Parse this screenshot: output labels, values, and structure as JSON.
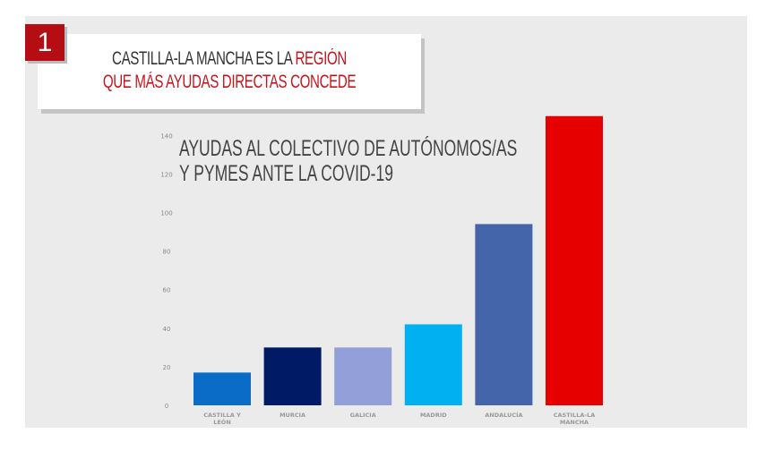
{
  "header": {
    "number": "1",
    "line1_a": "CASTILLA-LA MANCHA ES LA ",
    "line1_b": "REGIÓN",
    "line2": "QUE MÁS AYUDAS DIRECTAS CONCEDE"
  },
  "chart_data": {
    "type": "bar",
    "title_line1": "AYUDAS AL COLECTIVO DE AUTÓNOMOS/AS",
    "title_line2": "Y PYMES ANTE LA COVID-19",
    "categories": [
      "CASTILLA Y LEÓN",
      "MURCIA",
      "GALICIA",
      "MADRID",
      "ANDALUCÍA",
      "CASTILLA-LA MANCHA"
    ],
    "category_lines": [
      [
        "CASTILLA Y",
        "LEÓN"
      ],
      [
        "MURCIA"
      ],
      [
        "GALICIA"
      ],
      [
        "MADRID"
      ],
      [
        "ANDALUCÍA"
      ],
      [
        "CASTILLA-LA",
        "MANCHA"
      ]
    ],
    "values": [
      17,
      30,
      30,
      42,
      94,
      150
    ],
    "colors": [
      "#0a6cc7",
      "#001a66",
      "#939fd8",
      "#00b0f0",
      "#4565ab",
      "#e60000"
    ],
    "yticks": [
      0,
      20,
      40,
      60,
      80,
      100,
      120,
      140
    ],
    "ylim": [
      0,
      150
    ],
    "grid": false
  }
}
